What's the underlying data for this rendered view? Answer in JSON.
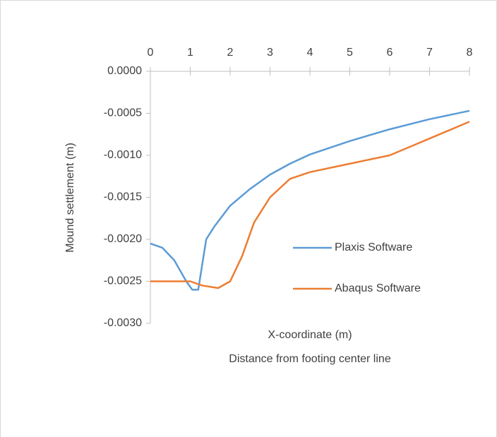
{
  "chart_data": {
    "type": "line",
    "ylabel": "Mound settlement (m)",
    "xlabel": "X-coordinate (m)",
    "xlabel2": "Distance from footing center line",
    "xlim": [
      0,
      8
    ],
    "xticks": [
      0,
      1,
      2,
      3,
      4,
      5,
      6,
      7,
      8
    ],
    "ylim": [
      -0.003,
      0
    ],
    "yticks": [
      {
        "value": 0,
        "label": "0.0000"
      },
      {
        "value": -0.0005,
        "label": "-0.0005"
      },
      {
        "value": -0.001,
        "label": "-0.0010"
      },
      {
        "value": -0.0015,
        "label": "-0.0015"
      },
      {
        "value": -0.002,
        "label": "-0.0020"
      },
      {
        "value": -0.0025,
        "label": "-0.0025"
      },
      {
        "value": -0.003,
        "label": "-0.0030"
      }
    ],
    "series": [
      {
        "name": "Plaxis Software",
        "color": "#5b9bd5",
        "x": [
          0,
          0.3,
          0.6,
          0.9,
          1.05,
          1.2,
          1.3,
          1.4,
          1.6,
          2.0,
          2.5,
          3.0,
          3.5,
          4.0,
          5,
          6,
          7,
          8
        ],
        "values": [
          -0.00205,
          -0.0021,
          -0.00225,
          -0.0025,
          -0.0026,
          -0.0026,
          -0.0023,
          -0.002,
          -0.00185,
          -0.0016,
          -0.0014,
          -0.00123,
          -0.0011,
          -0.00099,
          -0.00083,
          -0.00069,
          -0.00057,
          -0.00047
        ]
      },
      {
        "name": "Abaqus Software",
        "color": "#ed7d31",
        "x": [
          0,
          1,
          1.3,
          1.7,
          2.0,
          2.3,
          2.6,
          3.0,
          3.5,
          4.0,
          5,
          6,
          6.5,
          7,
          8
        ],
        "values": [
          -0.0025,
          -0.0025,
          -0.00255,
          -0.00258,
          -0.0025,
          -0.0022,
          -0.0018,
          -0.0015,
          -0.00128,
          -0.0012,
          -0.0011,
          -0.001,
          -0.0009,
          -0.0008,
          -0.0006
        ]
      }
    ]
  }
}
